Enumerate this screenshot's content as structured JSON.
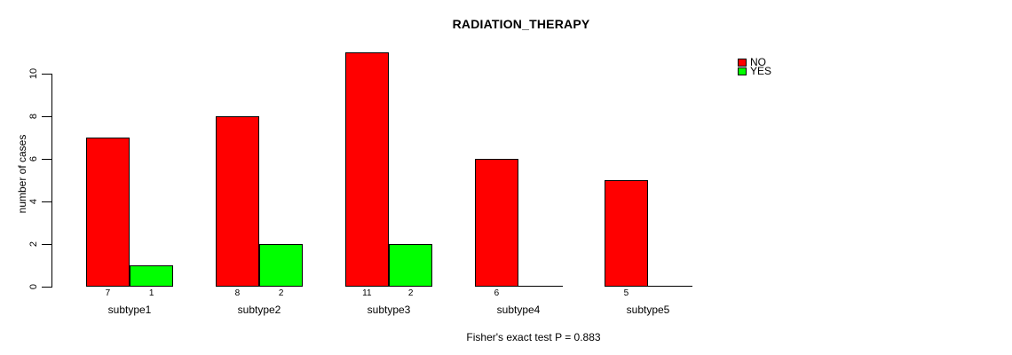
{
  "chart_data": {
    "type": "bar",
    "title": "RADIATION_THERAPY",
    "ylabel": "number of cases",
    "xlabel": "",
    "categories": [
      "subtype1",
      "subtype2",
      "subtype3",
      "subtype4",
      "subtype5"
    ],
    "series": [
      {
        "name": "NO",
        "color": "#FF0000",
        "values": [
          7,
          8,
          11,
          6,
          5
        ]
      },
      {
        "name": "YES",
        "color": "#00FF00",
        "values": [
          1,
          2,
          2,
          0,
          0
        ]
      }
    ],
    "bar_value_labels": [
      "7",
      "1",
      "8",
      "2",
      "11",
      "2",
      "6",
      "",
      "5",
      ""
    ],
    "yticks": [
      0,
      2,
      4,
      6,
      8,
      10
    ],
    "ylim": [
      0,
      11
    ],
    "grid": false,
    "legend_position": "top-right",
    "annotation": "Fisher's exact test P = 0.883"
  },
  "colors": {
    "background": "#FFFFFF",
    "axis": "#000000",
    "text": "#000000",
    "series_no": "#FF0000",
    "series_yes": "#00FF00"
  }
}
